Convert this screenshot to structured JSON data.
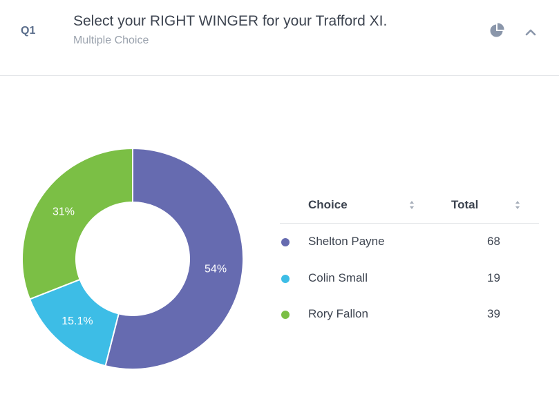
{
  "question": {
    "number": "Q1",
    "title": "Select your RIGHT WINGER for your Trafford XI.",
    "type": "Multiple Choice"
  },
  "icons": {
    "chart_toggle": "pie-chart-icon",
    "collapse": "chevron-up-icon"
  },
  "table": {
    "header_choice": "Choice",
    "header_total": "Total"
  },
  "chart_data": {
    "type": "pie",
    "donut": true,
    "categories": [
      "Shelton Payne",
      "Colin Small",
      "Rory Fallon"
    ],
    "values": [
      68,
      19,
      39
    ],
    "percent_labels": [
      "54%",
      "15.1%",
      "31%"
    ],
    "colors": [
      "#666bb0",
      "#3dbde6",
      "#7bbf45"
    ],
    "legend_position": "right"
  }
}
